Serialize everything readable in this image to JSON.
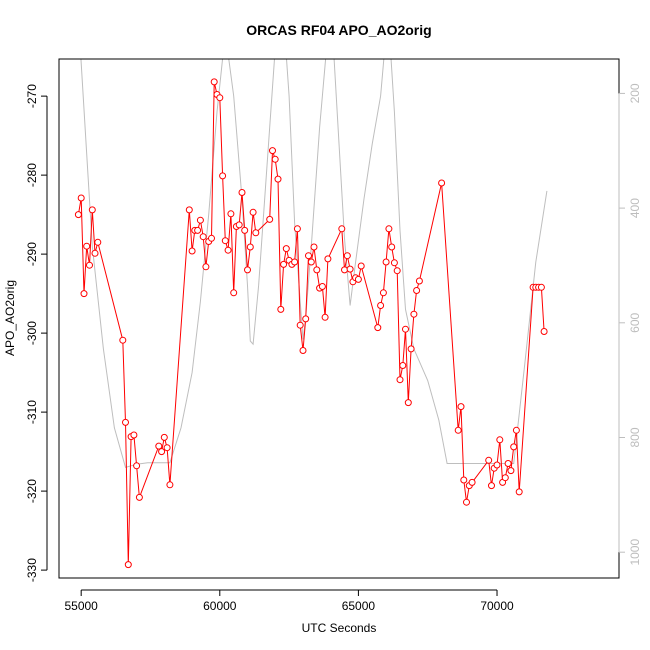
{
  "chart_data": {
    "type": "line",
    "title": "ORCAS RF04 APO_AO2orig",
    "xlabel": "UTC Seconds",
    "ylabel": "APO_AO2orig",
    "xlim": [
      54200,
      74400
    ],
    "ylim": [
      -331,
      -265.3
    ],
    "x_ticks": [
      55000,
      60000,
      65000,
      70000
    ],
    "x_tick_labels": [
      "55000",
      "60000",
      "65000",
      "70000"
    ],
    "y_ticks": [
      -330,
      -320,
      -310,
      -300,
      -290,
      -280,
      -270
    ],
    "y_tick_labels": [
      "-330",
      "-320",
      "-310",
      "-300",
      "-290",
      "-280",
      "-270"
    ],
    "y2_lim": [
      1045,
      140
    ],
    "y2_ticks": [
      200,
      400,
      600,
      800,
      1000
    ],
    "y2_tick_labels": [
      "200",
      "400",
      "600",
      "800",
      "1000"
    ],
    "colors": {
      "apo": "#ff0000",
      "secondary": "#bebebe",
      "axis": "#000000",
      "right_axis": "#bebebe"
    },
    "grid": false,
    "series": [
      {
        "points": [
          [
            54900,
            -285
          ],
          [
            55000,
            -282.9
          ],
          [
            55100,
            -295
          ],
          [
            55200,
            -289
          ],
          [
            55300,
            -291.4
          ],
          [
            55400,
            -284.4
          ],
          [
            55500,
            -289.9
          ],
          [
            55600,
            -288.5
          ],
          [
            56500,
            -300.9
          ],
          [
            56600,
            -311.3
          ],
          [
            56700,
            -329.3
          ],
          [
            56800,
            -313.1
          ],
          [
            56900,
            -312.9
          ],
          [
            57000,
            -316.8
          ],
          [
            57100,
            -320.8
          ],
          [
            57800,
            -314.3
          ],
          [
            57900,
            -315
          ],
          [
            58000,
            -313.2
          ],
          [
            58100,
            -314.5
          ],
          [
            58200,
            -319.2
          ],
          [
            58900,
            -284.4
          ],
          [
            59000,
            -289.6
          ],
          [
            59100,
            -287
          ],
          [
            59200,
            -287
          ],
          [
            59300,
            -285.7
          ],
          [
            59400,
            -287.8
          ],
          [
            59500,
            -291.6
          ],
          [
            59600,
            -288.4
          ],
          [
            59700,
            -288
          ],
          [
            59800,
            -268.2
          ],
          [
            59900,
            -269.8
          ],
          [
            60000,
            -270.2
          ],
          [
            60100,
            -280.1
          ],
          [
            60200,
            -288.3
          ],
          [
            60300,
            -289.5
          ],
          [
            60400,
            -284.9
          ],
          [
            60500,
            -294.9
          ],
          [
            60600,
            -286.5
          ],
          [
            60700,
            -286.3
          ],
          [
            60800,
            -282.2
          ],
          [
            60900,
            -287
          ],
          [
            61000,
            -292
          ],
          [
            61100,
            -289.1
          ],
          [
            61200,
            -284.7
          ],
          [
            61300,
            -287.3
          ],
          [
            61800,
            -285.6
          ],
          [
            61900,
            -276.9
          ],
          [
            62000,
            -278
          ],
          [
            62100,
            -280.5
          ],
          [
            62200,
            -297
          ],
          [
            62300,
            -291.3
          ],
          [
            62400,
            -289.3
          ],
          [
            62500,
            -290.8
          ],
          [
            62600,
            -291.3
          ],
          [
            62700,
            -291
          ],
          [
            62800,
            -286.8
          ],
          [
            62900,
            -299
          ],
          [
            63000,
            -302.2
          ],
          [
            63100,
            -298.2
          ],
          [
            63200,
            -290.2
          ],
          [
            63300,
            -291
          ],
          [
            63400,
            -289.1
          ],
          [
            63500,
            -292
          ],
          [
            63600,
            -294.3
          ],
          [
            63700,
            -294.1
          ],
          [
            63800,
            -298
          ],
          [
            63900,
            -290.6
          ],
          [
            64400,
            -286.8
          ],
          [
            64500,
            -292
          ],
          [
            64600,
            -290.2
          ],
          [
            64700,
            -291.9
          ],
          [
            64800,
            -293.5
          ],
          [
            64900,
            -293
          ],
          [
            65000,
            -293.2
          ],
          [
            65100,
            -291.5
          ],
          [
            65700,
            -299.3
          ],
          [
            65800,
            -296.5
          ],
          [
            65900,
            -294.9
          ],
          [
            66000,
            -291
          ],
          [
            66100,
            -286.8
          ],
          [
            66200,
            -289.1
          ],
          [
            66300,
            -291.1
          ],
          [
            66400,
            -292.1
          ],
          [
            66500,
            -305.9
          ],
          [
            66600,
            -304.1
          ],
          [
            66700,
            -299.5
          ],
          [
            66800,
            -308.8
          ],
          [
            66900,
            -302
          ],
          [
            67000,
            -297.6
          ],
          [
            67100,
            -294.6
          ],
          [
            67200,
            -293.4
          ],
          [
            68000,
            -281
          ],
          [
            68600,
            -312.3
          ],
          [
            68700,
            -309.3
          ],
          [
            68800,
            -318.6
          ],
          [
            68900,
            -321.4
          ],
          [
            69000,
            -319.3
          ],
          [
            69100,
            -318.9
          ],
          [
            69700,
            -316.1
          ],
          [
            69800,
            -319.3
          ],
          [
            69900,
            -317.1
          ],
          [
            70000,
            -316.7
          ],
          [
            70100,
            -313.5
          ],
          [
            70200,
            -318.9
          ],
          [
            70300,
            -318.3
          ],
          [
            70400,
            -316.5
          ],
          [
            70500,
            -317.4
          ],
          [
            70600,
            -314.4
          ],
          [
            70700,
            -312.3
          ],
          [
            70800,
            -320.1
          ],
          [
            71300,
            -294.2
          ],
          [
            71400,
            -294.2
          ],
          [
            71500,
            -294.2
          ],
          [
            71600,
            -294.2
          ],
          [
            71700,
            -299.8
          ]
        ]
      },
      {
        "points": [
          [
            54900,
            -260
          ],
          [
            55400,
            -289
          ],
          [
            55800,
            -302
          ],
          [
            56200,
            -312
          ],
          [
            56600,
            -317
          ],
          [
            57000,
            -316.6
          ],
          [
            57400,
            -316.4
          ],
          [
            57800,
            -316.4
          ],
          [
            58200,
            -316.4
          ],
          [
            58600,
            -312
          ],
          [
            59000,
            -305
          ],
          [
            59300,
            -296
          ],
          [
            59600,
            -285
          ],
          [
            59900,
            -272
          ],
          [
            60200,
            -262
          ],
          [
            60500,
            -270
          ],
          [
            60800,
            -283
          ],
          [
            61000,
            -294
          ],
          [
            61100,
            -301
          ],
          [
            61200,
            -301.4
          ],
          [
            61400,
            -294
          ],
          [
            61700,
            -279
          ],
          [
            62000,
            -264
          ],
          [
            62300,
            -260
          ],
          [
            62500,
            -270
          ],
          [
            62700,
            -286
          ],
          [
            62900,
            -296
          ],
          [
            63000,
            -300.8
          ],
          [
            63100,
            -298
          ],
          [
            63300,
            -289
          ],
          [
            63600,
            -274
          ],
          [
            63900,
            -262
          ],
          [
            64100,
            -264
          ],
          [
            64300,
            -276
          ],
          [
            64500,
            -288
          ],
          [
            64700,
            -296.5
          ],
          [
            64900,
            -291
          ],
          [
            65200,
            -283
          ],
          [
            65500,
            -276
          ],
          [
            65800,
            -270
          ],
          [
            66000,
            -262
          ],
          [
            66100,
            -261
          ],
          [
            66300,
            -272
          ],
          [
            66500,
            -287
          ],
          [
            66700,
            -297
          ],
          [
            67000,
            -302
          ],
          [
            67500,
            -306
          ],
          [
            67900,
            -311
          ],
          [
            68200,
            -316.5
          ],
          [
            68600,
            -316.5
          ],
          [
            69000,
            -316.5
          ],
          [
            69400,
            -316.5
          ],
          [
            69800,
            -316.5
          ],
          [
            70200,
            -316.5
          ],
          [
            70600,
            -316.5
          ],
          [
            71000,
            -304
          ],
          [
            71400,
            -291
          ],
          [
            71800,
            -282
          ]
        ]
      }
    ]
  }
}
